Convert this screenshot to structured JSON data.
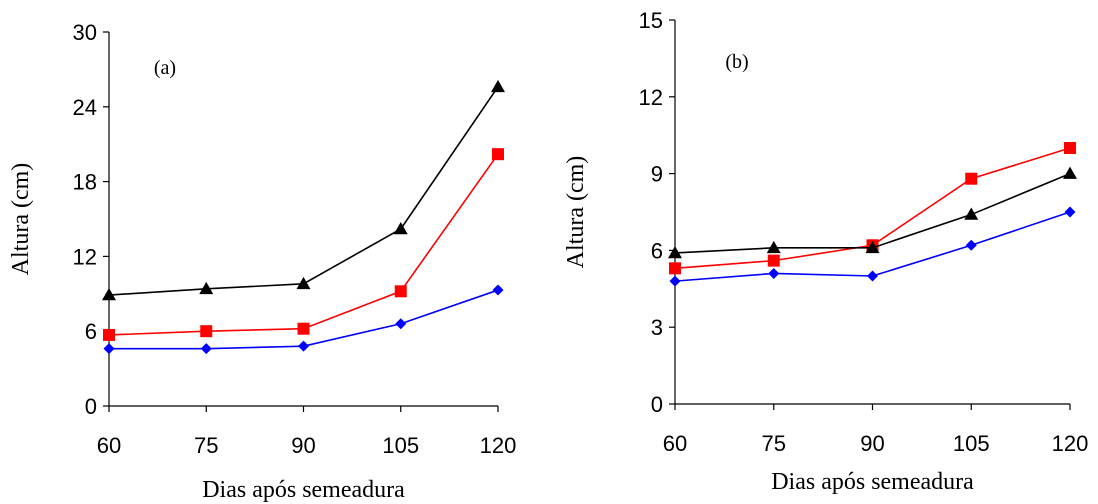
{
  "chart_data": [
    {
      "type": "line",
      "panel_label": "(a)",
      "xlabel": "Dias após semeadura",
      "ylabel": "Altura (cm)",
      "x": [
        60,
        75,
        90,
        105,
        120
      ],
      "x_ticks": [
        "60",
        "75",
        "90",
        "105",
        "120"
      ],
      "ylim": [
        0,
        30
      ],
      "y_ticks": [
        "0",
        "6",
        "12",
        "18",
        "24",
        "30"
      ],
      "grid": false,
      "series": [
        {
          "marker": "diamond",
          "color": "#0000ff",
          "values": [
            4.6,
            4.6,
            4.8,
            6.6,
            9.3
          ]
        },
        {
          "marker": "square",
          "color": "#ff0000",
          "values": [
            5.7,
            6.0,
            6.2,
            9.2,
            20.2
          ]
        },
        {
          "marker": "triangle",
          "color": "#000000",
          "values": [
            8.9,
            9.4,
            9.8,
            14.2,
            25.6
          ]
        }
      ]
    },
    {
      "type": "line",
      "panel_label": "(b)",
      "xlabel": "Dias após semeadura",
      "ylabel": "Altura (cm)",
      "x": [
        60,
        75,
        90,
        105,
        120
      ],
      "x_ticks": [
        "60",
        "75",
        "90",
        "105",
        "120"
      ],
      "ylim": [
        0,
        15
      ],
      "y_ticks": [
        "0",
        "3",
        "6",
        "9",
        "12",
        "15"
      ],
      "grid": false,
      "series": [
        {
          "marker": "diamond",
          "color": "#0000ff",
          "values": [
            4.8,
            5.1,
            5.0,
            6.2,
            7.5
          ]
        },
        {
          "marker": "square",
          "color": "#ff0000",
          "values": [
            5.3,
            5.6,
            6.2,
            8.8,
            10.0
          ]
        },
        {
          "marker": "triangle",
          "color": "#000000",
          "values": [
            5.9,
            6.1,
            6.1,
            7.4,
            9.0
          ]
        }
      ]
    }
  ]
}
